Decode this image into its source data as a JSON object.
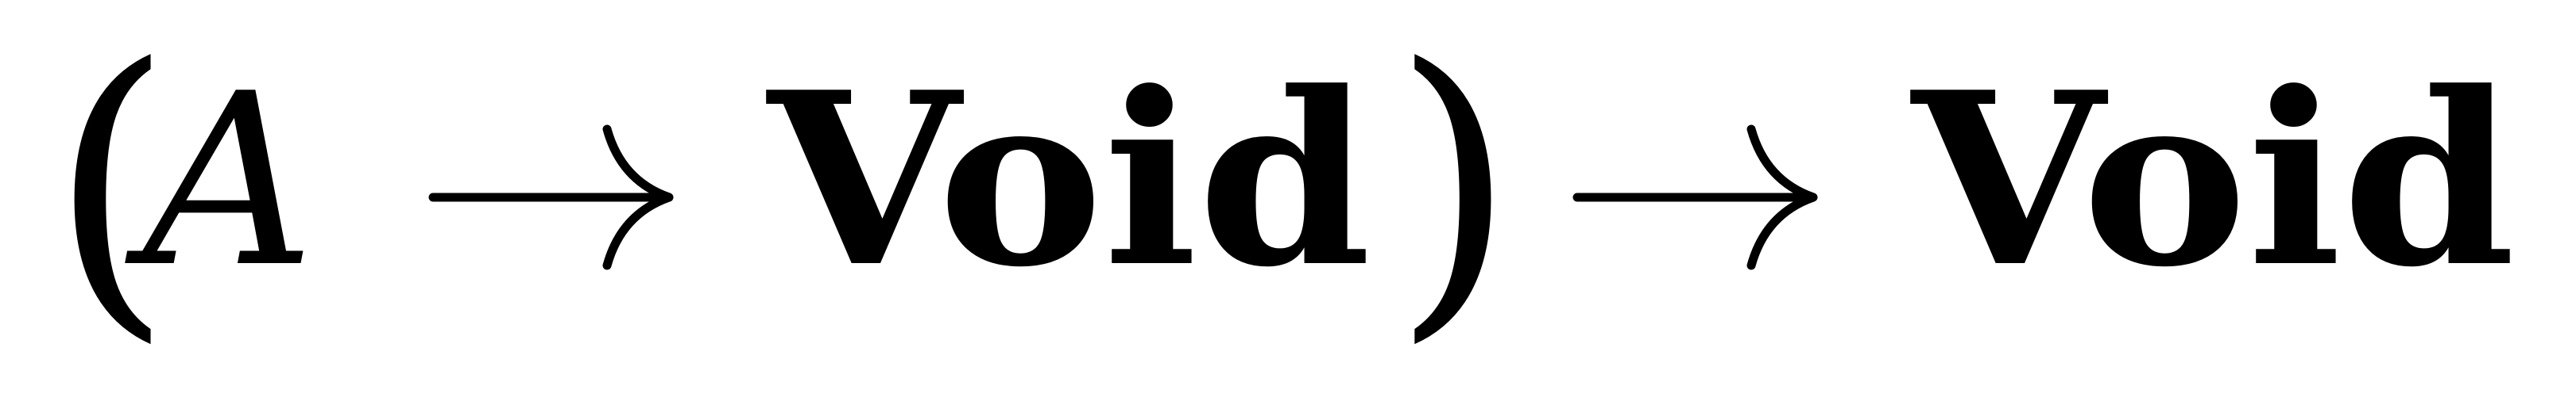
{
  "formula": {
    "open_paren": "(",
    "variable": "A",
    "inner_codomain": "Void",
    "close_paren": ")",
    "outer_codomain": "Void",
    "arrow_icon": "right-arrow-icon"
  }
}
